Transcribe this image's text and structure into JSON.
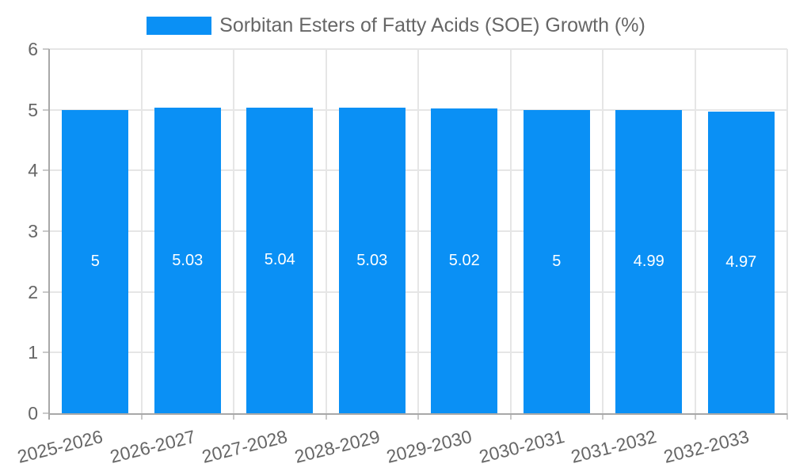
{
  "chart_data": {
    "type": "bar",
    "categories": [
      "2025-2026",
      "2026-2027",
      "2027-2028",
      "2028-2029",
      "2029-2030",
      "2030-2031",
      "2031-2032",
      "2032-2033"
    ],
    "values": [
      5,
      5.03,
      5.04,
      5.03,
      5.02,
      5,
      4.99,
      4.97
    ],
    "value_labels": [
      "5",
      "5.03",
      "5.04",
      "5.03",
      "5.02",
      "5",
      "4.99",
      "4.97"
    ],
    "series": [
      {
        "name": "Sorbitan Esters of Fatty Acids (SOE) Growth (%)",
        "values": [
          5,
          5.03,
          5.04,
          5.03,
          5.02,
          5,
          4.99,
          4.97
        ]
      }
    ],
    "title": "",
    "xlabel": "",
    "ylabel": "",
    "ylim": [
      0,
      6
    ],
    "yticks": [
      "0",
      "1",
      "2",
      "3",
      "4",
      "5",
      "6"
    ],
    "grid": true,
    "legend_position": "top",
    "x_label_rotation_deg": -14
  },
  "legend": {
    "label": "Sorbitan Esters of Fatty Acids (SOE) Growth (%)"
  },
  "colors": {
    "bar": "#0a90f5",
    "value_label": "#ffffff",
    "text": "#666666",
    "axis": "#a8a8a8",
    "grid": "#e6e6e6",
    "tick": "#c9c9c9",
    "background": "#ffffff"
  }
}
